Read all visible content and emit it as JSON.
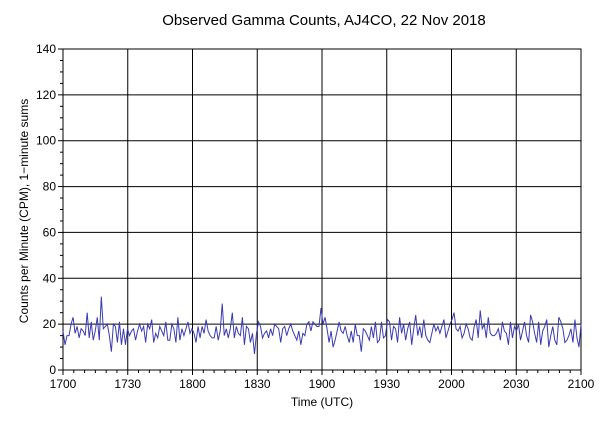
{
  "chart_data": {
    "type": "line",
    "title": "Observed Gamma Counts, AJ4CO, 22 Nov 2018",
    "xlabel": "Time (UTC)",
    "ylabel": "Counts per Minute (CPM), 1−minute sums",
    "xticks": [
      "1700",
      "1730",
      "1800",
      "1830",
      "1900",
      "1930",
      "2000",
      "2030",
      "2100"
    ],
    "yticks": [
      "0",
      "20",
      "40",
      "60",
      "80",
      "100",
      "120",
      "140"
    ],
    "xlim_minutes": [
      0,
      240
    ],
    "ylim": [
      0,
      140
    ],
    "grid": true,
    "line_color": "#3b3bb0",
    "series": [
      {
        "values": [
          17,
          11,
          15,
          15,
          20,
          23,
          16,
          19,
          14,
          18,
          17,
          15,
          25,
          14,
          21,
          13,
          17,
          23,
          13,
          32,
          18,
          19,
          20,
          15,
          8,
          20,
          19,
          12,
          21,
          11,
          18,
          11,
          18,
          15,
          17,
          18,
          13,
          17,
          20,
          17,
          19,
          12,
          20,
          18,
          22,
          12,
          16,
          14,
          19,
          17,
          15,
          21,
          13,
          13,
          20,
          18,
          12,
          23,
          13,
          18,
          15,
          18,
          21,
          16,
          18,
          16,
          12,
          19,
          14,
          19,
          16,
          22,
          17,
          15,
          14,
          14,
          19,
          13,
          17,
          29,
          15,
          18,
          14,
          18,
          25,
          14,
          19,
          16,
          15,
          23,
          11,
          19,
          18,
          12,
          16,
          7,
          16,
          21,
          19,
          14,
          16,
          17,
          14,
          18,
          15,
          20,
          19,
          18,
          12,
          18,
          19,
          15,
          18,
          20,
          17,
          15,
          13,
          17,
          11,
          16,
          15,
          20,
          21,
          17,
          21,
          20,
          19,
          19,
          27,
          20,
          23,
          18,
          12,
          17,
          10,
          13,
          17,
          21,
          17,
          16,
          19,
          15,
          12,
          17,
          12,
          20,
          15,
          15,
          8,
          18,
          17,
          15,
          13,
          19,
          14,
          21,
          12,
          13,
          21,
          14,
          15,
          22,
          21,
          13,
          19,
          18,
          12,
          23,
          16,
          20,
          13,
          18,
          21,
          11,
          18,
          24,
          15,
          19,
          14,
          22,
          15,
          13,
          12,
          16,
          20,
          17,
          19,
          16,
          19,
          22,
          14,
          17,
          20,
          22,
          25,
          18,
          17,
          19,
          14,
          16,
          20,
          18,
          14,
          13,
          19,
          22,
          14,
          26,
          18,
          20,
          14,
          23,
          16,
          15,
          15,
          16,
          18,
          13,
          21,
          17,
          16,
          11,
          21,
          14,
          19,
          17,
          20,
          13,
          17,
          21,
          15,
          12,
          24,
          21,
          16,
          12,
          21,
          11,
          17,
          19,
          22,
          10,
          15,
          19,
          13,
          11,
          23,
          21,
          18,
          12,
          13,
          15,
          18,
          12,
          22,
          14,
          10,
          20
        ]
      }
    ]
  }
}
